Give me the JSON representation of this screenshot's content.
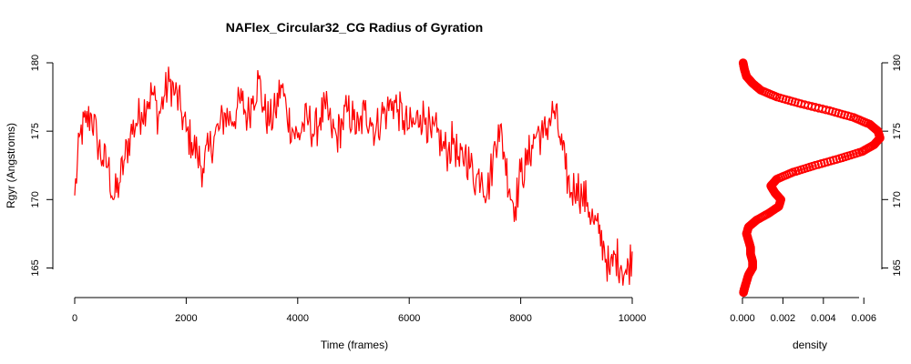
{
  "colors": {
    "series": "#ff0000",
    "axis": "#000000",
    "background": "#ffffff"
  },
  "chart_data": [
    {
      "type": "line",
      "title": "NAFlex_Circular32_CG Radius of Gyration",
      "xlabel": "Time (frames)",
      "ylabel": "Rgyr (Angstroms)",
      "xlim": [
        0,
        10000
      ],
      "ylim": [
        163.5,
        180.0
      ],
      "xticks": [
        "0",
        "2000",
        "4000",
        "6000",
        "8000",
        "10000"
      ],
      "yticks": [
        "165",
        "170",
        "175",
        "180"
      ],
      "series": [
        {
          "x": [
            0,
            100,
            200,
            300,
            400,
            500,
            600,
            700,
            800,
            900,
            1000,
            1100,
            1200,
            1300,
            1400,
            1500,
            1600,
            1700,
            1800,
            1900,
            2000,
            2100,
            2200,
            2300,
            2400,
            2500,
            2600,
            2700,
            2800,
            2900,
            3000,
            3100,
            3200,
            3300,
            3400,
            3500,
            3600,
            3700,
            3800,
            3900,
            4000,
            4100,
            4200,
            4300,
            4400,
            4500,
            4600,
            4700,
            4800,
            4900,
            5000,
            5100,
            5200,
            5300,
            5400,
            5500,
            5600,
            5700,
            5800,
            5900,
            6000,
            6100,
            6200,
            6300,
            6400,
            6500,
            6600,
            6700,
            6800,
            6900,
            7000,
            7100,
            7200,
            7300,
            7400,
            7500,
            7600,
            7700,
            7800,
            7900,
            8000,
            8100,
            8200,
            8300,
            8400,
            8500,
            8600,
            8700,
            8800,
            8900,
            9000,
            9100,
            9200,
            9300,
            9400,
            9500,
            9600,
            9700,
            9800,
            9900,
            10000
          ],
          "y": [
            170.3,
            174.8,
            175.6,
            176.2,
            174.4,
            172.9,
            172.5,
            170.0,
            171.2,
            173.0,
            174.8,
            175.6,
            176.4,
            177.2,
            177.8,
            176.0,
            177.5,
            178.6,
            177.8,
            176.6,
            175.0,
            174.2,
            173.3,
            172.3,
            173.5,
            174.6,
            175.2,
            176.3,
            175.8,
            176.5,
            177.2,
            176.0,
            177.6,
            178.8,
            176.5,
            175.7,
            176.4,
            178.4,
            176.5,
            175.2,
            174.5,
            175.5,
            175.8,
            174.8,
            176.0,
            176.6,
            175.2,
            174.6,
            175.6,
            176.5,
            175.8,
            175.0,
            176.5,
            176.0,
            175.0,
            176.2,
            176.4,
            177.2,
            176.6,
            175.8,
            175.2,
            175.5,
            176.2,
            176.0,
            174.5,
            174.9,
            173.8,
            173.5,
            174.5,
            172.4,
            173.5,
            172.4,
            171.5,
            172.0,
            170.5,
            172.8,
            175.5,
            173.5,
            170.8,
            169.5,
            172.0,
            172.5,
            174.0,
            175.0,
            174.5,
            175.7,
            176.5,
            174.6,
            172.2,
            170.5,
            171.2,
            170.2,
            169.8,
            168.4,
            167.5,
            166.5,
            164.5,
            166.0,
            165.2,
            164.5,
            166.2
          ]
        }
      ]
    },
    {
      "type": "scatter",
      "xlabel": "density",
      "ylabel": "",
      "xlim": [
        0,
        0.0068
      ],
      "ylim": [
        163.5,
        180.0
      ],
      "xticks": [
        "0.000",
        "0.002",
        "0.004",
        "0.006"
      ],
      "yticks": [
        "165",
        "170",
        "175",
        "180"
      ],
      "series": [
        {
          "y": [
            163.2,
            163.5,
            164.0,
            164.5,
            165.0,
            165.5,
            166.0,
            166.5,
            167.0,
            167.5,
            168.0,
            168.5,
            169.0,
            169.5,
            170.0,
            170.5,
            171.0,
            171.5,
            172.0,
            172.5,
            173.0,
            173.5,
            174.0,
            174.5,
            175.0,
            175.5,
            176.0,
            176.5,
            177.0,
            177.5,
            178.0,
            178.5,
            179.0,
            179.5,
            180.0
          ],
          "x": [
            5e-05,
            0.0001,
            0.0002,
            0.0003,
            0.0005,
            0.0005,
            0.0004,
            0.0004,
            0.0003,
            0.0002,
            0.0003,
            0.0007,
            0.0013,
            0.0018,
            0.0019,
            0.0016,
            0.0014,
            0.0017,
            0.0025,
            0.0036,
            0.0048,
            0.0059,
            0.0065,
            0.0068,
            0.0067,
            0.0063,
            0.0055,
            0.0043,
            0.0029,
            0.0017,
            0.0009,
            0.0005,
            0.0002,
            0.0001,
            3e-05
          ]
        }
      ]
    }
  ]
}
